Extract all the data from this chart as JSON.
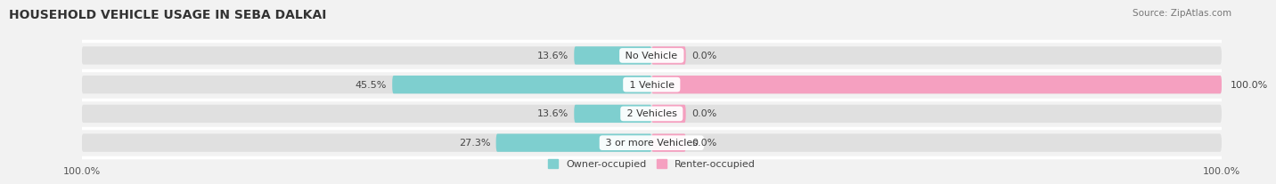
{
  "title": "HOUSEHOLD VEHICLE USAGE IN SEBA DALKAI",
  "source": "Source: ZipAtlas.com",
  "categories": [
    "No Vehicle",
    "1 Vehicle",
    "2 Vehicles",
    "3 or more Vehicles"
  ],
  "owner_values": [
    13.6,
    45.5,
    13.6,
    27.3
  ],
  "renter_values": [
    0.0,
    100.0,
    0.0,
    0.0
  ],
  "owner_color_light": "#7ecfcf",
  "owner_color_dark": "#2aa8a8",
  "renter_color_light": "#f5a0c0",
  "renter_color_dark": "#f06090",
  "bg_color": "#f2f2f2",
  "bar_bg_color": "#e0e0e0",
  "legend_owner": "Owner-occupied",
  "legend_renter": "Renter-occupied",
  "min_renter_stub": 6.0,
  "xlim": 100,
  "title_fontsize": 10,
  "label_fontsize": 8,
  "tick_fontsize": 8,
  "source_fontsize": 7.5
}
